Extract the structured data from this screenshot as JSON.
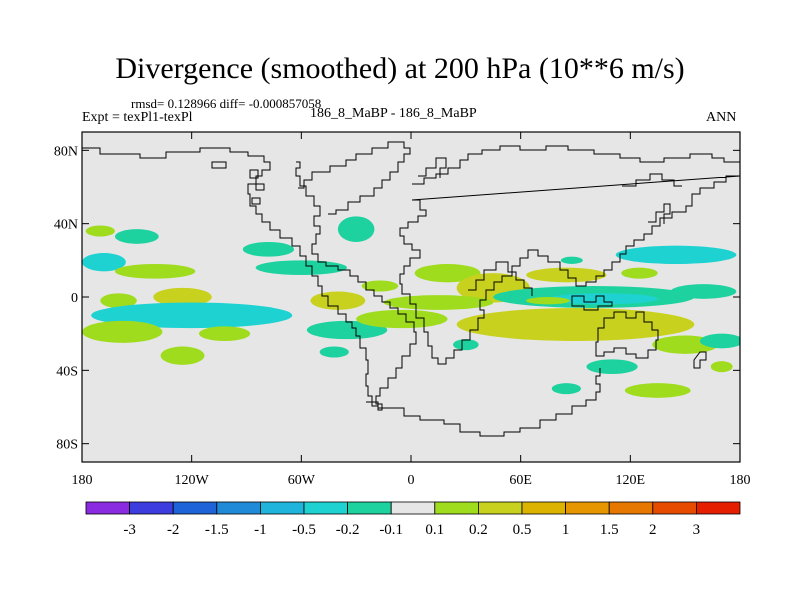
{
  "header": {
    "title": "Divergence (smoothed) at 200 hPa (10**6 m/s)",
    "stats": "rmsd= 0.128966 diff= -0.000857058",
    "expt": "Expt = texPl1-texPl",
    "runs": "186_8_MaBP - 186_8_MaBP",
    "season": "ANN"
  },
  "chart_data": {
    "type": "heatmap",
    "title": "Divergence (smoothed) at 200 hPa (10**6 m/s)",
    "xlabel": "",
    "ylabel": "",
    "xlim": [
      -180,
      180
    ],
    "ylim": [
      -90,
      90
    ],
    "x_ticks": [
      {
        "value": -180,
        "label": "180"
      },
      {
        "value": -120,
        "label": "120W"
      },
      {
        "value": -60,
        "label": "60W"
      },
      {
        "value": 0,
        "label": "0"
      },
      {
        "value": 60,
        "label": "60E"
      },
      {
        "value": 120,
        "label": "120E"
      },
      {
        "value": 180,
        "label": "180"
      }
    ],
    "y_ticks": [
      {
        "value": 80,
        "label": "80N"
      },
      {
        "value": 40,
        "label": "40N"
      },
      {
        "value": 0,
        "label": "0"
      },
      {
        "value": -40,
        "label": "40S"
      },
      {
        "value": -80,
        "label": "80S"
      }
    ],
    "background_color": "#e6e6e6",
    "colorbar": {
      "colors": [
        "#8a2be2",
        "#3c3cdf",
        "#1e64d8",
        "#1e8ad8",
        "#1eb4dc",
        "#1ed2d2",
        "#1ed2a0",
        "#e6e6e6",
        "#a0dc1e",
        "#c8d21e",
        "#dcb400",
        "#e69600",
        "#e67800",
        "#e64b00",
        "#e61e00"
      ],
      "labels": [
        "-3",
        "-2",
        "-1.5",
        "-1",
        "-0.5",
        "-0.2",
        "-0.1",
        "0.1",
        "0.2",
        "0.5",
        "1",
        "1.5",
        "2",
        "3"
      ]
    },
    "regions": [
      {
        "lon": -30,
        "lat": 37,
        "rlon": 10,
        "rlat": 7,
        "level": -0.15
      },
      {
        "lon": -170,
        "lat": 36,
        "rlon": 8,
        "rlat": 3,
        "level": 0.15
      },
      {
        "lon": -168,
        "lat": 19,
        "rlon": 12,
        "rlat": 5,
        "level": -0.3
      },
      {
        "lon": -150,
        "lat": 33,
        "rlon": 12,
        "rlat": 4,
        "level": -0.15
      },
      {
        "lon": -140,
        "lat": 14,
        "rlon": 22,
        "rlat": 4,
        "level": 0.15
      },
      {
        "lon": -78,
        "lat": 26,
        "rlon": 14,
        "rlat": 4,
        "level": -0.15
      },
      {
        "lon": -60,
        "lat": 16,
        "rlon": 25,
        "rlat": 4,
        "level": -0.15
      },
      {
        "lon": -125,
        "lat": 0,
        "rlon": 16,
        "rlat": 5,
        "level": 0.3
      },
      {
        "lon": -160,
        "lat": -2,
        "rlon": 10,
        "rlat": 4,
        "level": 0.15
      },
      {
        "lon": -120,
        "lat": -10,
        "rlon": 55,
        "rlat": 7,
        "level": -0.3
      },
      {
        "lon": -158,
        "lat": -19,
        "rlon": 22,
        "rlat": 6,
        "level": 0.15
      },
      {
        "lon": -102,
        "lat": -20,
        "rlon": 14,
        "rlat": 4,
        "level": 0.15
      },
      {
        "lon": -40,
        "lat": -2,
        "rlon": 15,
        "rlat": 5,
        "level": 0.3
      },
      {
        "lon": -35,
        "lat": -18,
        "rlon": 22,
        "rlat": 5,
        "level": -0.15
      },
      {
        "lon": -5,
        "lat": -12,
        "rlon": 25,
        "rlat": 5,
        "level": 0.15
      },
      {
        "lon": 20,
        "lat": 13,
        "rlon": 18,
        "rlat": 5,
        "level": 0.15
      },
      {
        "lon": 45,
        "lat": 5,
        "rlon": 20,
        "rlat": 8,
        "level": 0.3
      },
      {
        "lon": 15,
        "lat": -3,
        "rlon": 30,
        "rlat": 4,
        "level": 0.15
      },
      {
        "lon": 100,
        "lat": 0,
        "rlon": 55,
        "rlat": 6,
        "level": -0.15
      },
      {
        "lon": 105,
        "lat": -1,
        "rlon": 30,
        "rlat": 3,
        "level": -0.3
      },
      {
        "lon": 85,
        "lat": 12,
        "rlon": 22,
        "rlat": 4,
        "level": 0.3
      },
      {
        "lon": 145,
        "lat": 23,
        "rlon": 33,
        "rlat": 5,
        "level": -0.3
      },
      {
        "lon": 125,
        "lat": 13,
        "rlon": 10,
        "rlat": 3,
        "level": 0.15
      },
      {
        "lon": 160,
        "lat": 3,
        "rlon": 18,
        "rlat": 4,
        "level": -0.15
      },
      {
        "lon": 90,
        "lat": -15,
        "rlon": 65,
        "rlat": 9,
        "level": 0.3
      },
      {
        "lon": 110,
        "lat": -38,
        "rlon": 14,
        "rlat": 4,
        "level": -0.15
      },
      {
        "lon": 150,
        "lat": -26,
        "rlon": 18,
        "rlat": 5,
        "level": 0.15
      },
      {
        "lon": 170,
        "lat": -24,
        "rlon": 12,
        "rlat": 4,
        "level": -0.15
      },
      {
        "lon": 170,
        "lat": -38,
        "rlon": 6,
        "rlat": 3,
        "level": 0.15
      },
      {
        "lon": -125,
        "lat": -32,
        "rlon": 12,
        "rlat": 5,
        "level": 0.15
      },
      {
        "lon": -42,
        "lat": -30,
        "rlon": 8,
        "rlat": 3,
        "level": -0.15
      },
      {
        "lon": 30,
        "lat": -26,
        "rlon": 7,
        "rlat": 3,
        "level": -0.15
      },
      {
        "lon": 85,
        "lat": -50,
        "rlon": 8,
        "rlat": 3,
        "level": -0.15
      },
      {
        "lon": 135,
        "lat": -51,
        "rlon": 18,
        "rlat": 4,
        "level": 0.15
      },
      {
        "lon": 88,
        "lat": 20,
        "rlon": 6,
        "rlat": 2,
        "level": -0.15
      },
      {
        "lon": 75,
        "lat": -2,
        "rlon": 12,
        "rlat": 2,
        "level": 0.15
      },
      {
        "lon": -17,
        "lat": 6,
        "rlon": 10,
        "rlat": 3,
        "level": 0.15
      }
    ]
  }
}
